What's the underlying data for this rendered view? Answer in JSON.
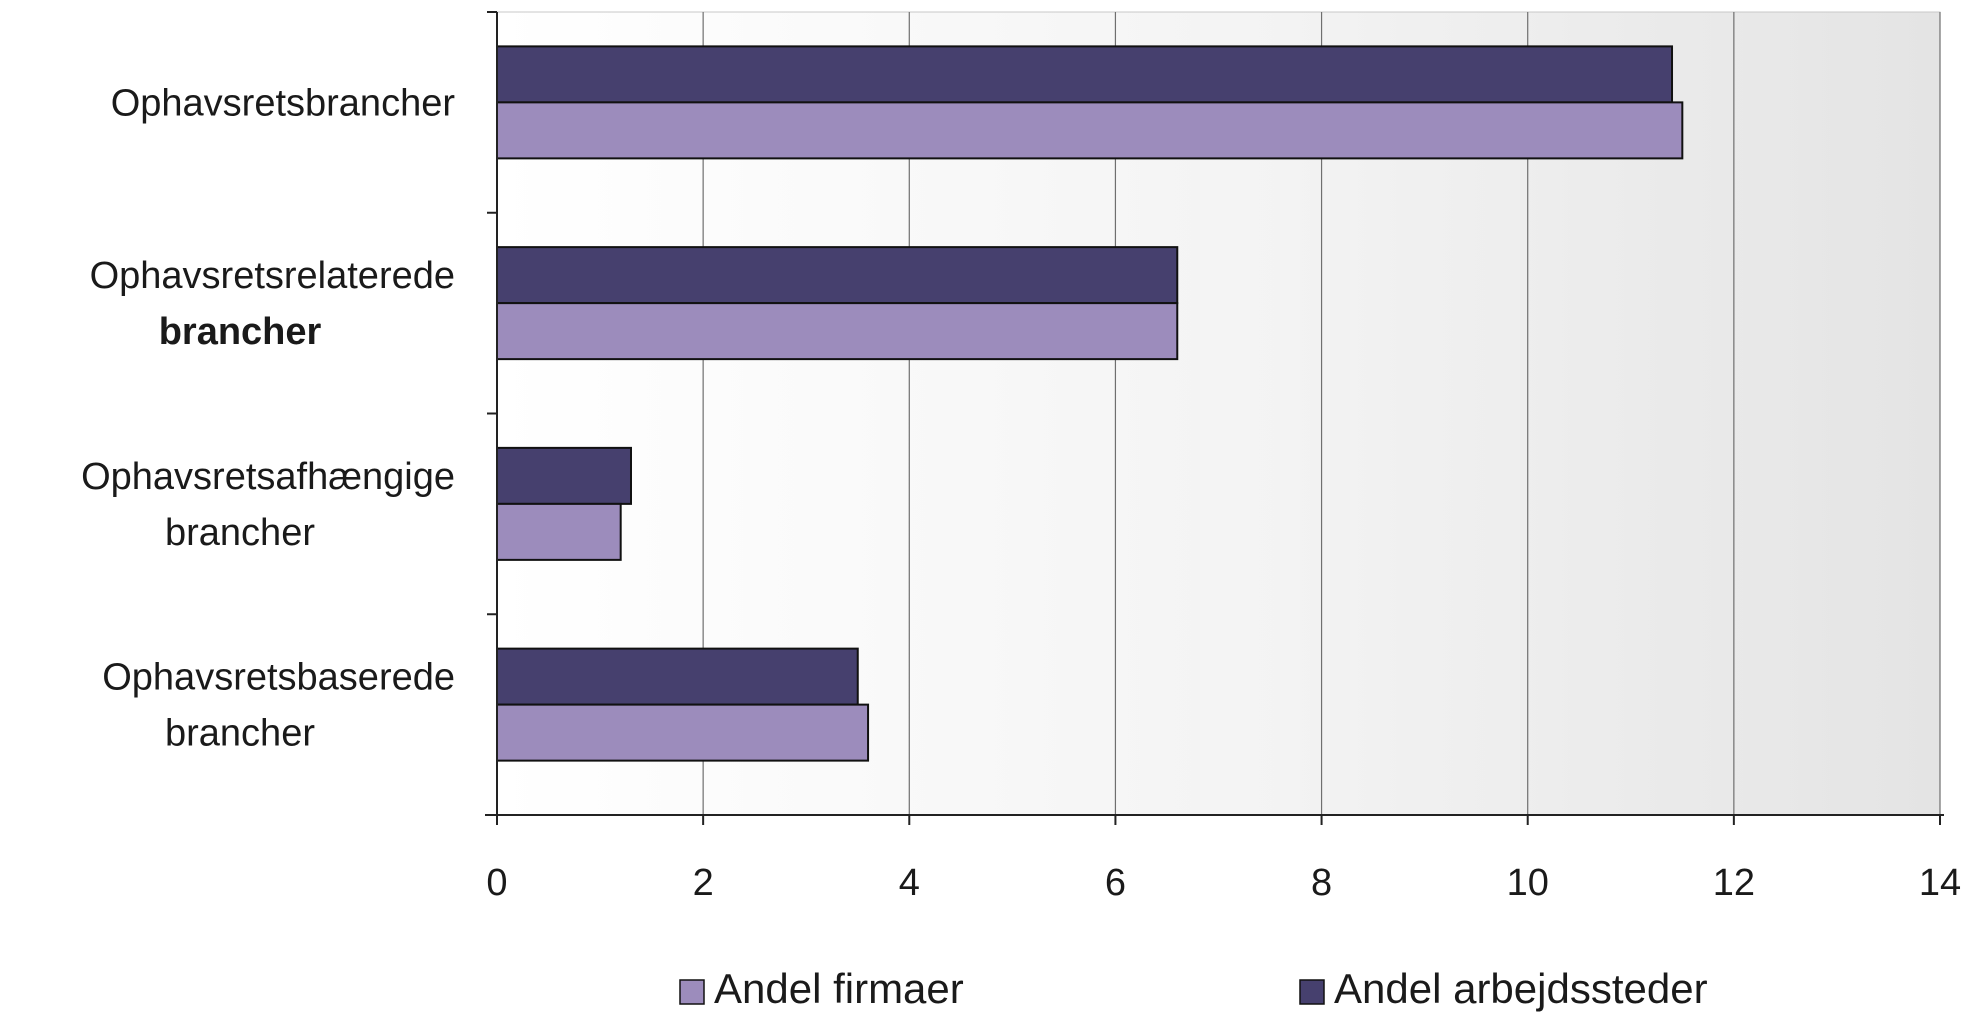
{
  "chart_data": {
    "type": "bar",
    "orientation": "horizontal",
    "categories": [
      [
        "Ophavsretsbrancher"
      ],
      [
        "Ophavsretsrelaterede",
        "brancher"
      ],
      [
        "Ophavsretsafhængige",
        "brancher"
      ],
      [
        "Ophavsretsbaserede",
        "brancher"
      ]
    ],
    "bold_second_line": [
      false,
      true,
      false,
      false
    ],
    "series": [
      {
        "name": "Andel firmaer",
        "values": [
          11.5,
          6.6,
          1.2,
          3.6
        ],
        "color": "#9c8cbc"
      },
      {
        "name": "Andel arbejdssteder",
        "values": [
          11.4,
          6.6,
          1.3,
          3.5
        ],
        "color": "#46406e"
      }
    ],
    "xlim": [
      0,
      14
    ],
    "xticks": [
      "0",
      "2",
      "4",
      "6",
      "8",
      "10",
      "12",
      "14"
    ],
    "grid": true,
    "legend_position": "bottom",
    "plot_background": "#ececec"
  }
}
